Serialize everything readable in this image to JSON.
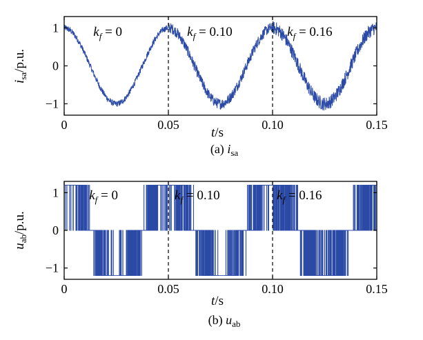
{
  "chart_data": [
    {
      "type": "line",
      "id": "isa",
      "caption_prefix": "(a) ",
      "caption_var": "i",
      "caption_sub": "sa",
      "ylabel_var": "i",
      "ylabel_sub": "sa",
      "ylabel_unit": "/p.u.",
      "xlabel_var": "t",
      "xlabel_unit": "/s",
      "xlim": [
        0,
        0.15
      ],
      "ylim": [
        -1.3,
        1.3
      ],
      "xticks": [
        0,
        0.05,
        0.1,
        0.15
      ],
      "xtick_labels": [
        "0",
        "0.05",
        "0.10",
        "0.15"
      ],
      "yticks": [
        -1,
        0,
        1
      ],
      "ytick_labels": [
        "−1",
        "0",
        "1"
      ],
      "dashed_x": [
        0.05,
        0.1
      ],
      "annotations": [
        {
          "prefix": "k",
          "sub": "f",
          "value": " = 0",
          "x": 0.014
        },
        {
          "prefix": "k",
          "sub": "f",
          "value": " = 0.10",
          "x": 0.059
        },
        {
          "prefix": "k",
          "sub": "f",
          "value": " = 0.16",
          "x": 0.107
        }
      ],
      "series": [
        {
          "color": "#2b4aa6",
          "signal": "sinusoid",
          "frequency_hz": 20,
          "amplitude": 1.0,
          "noise_amplitude_by_segment": [
            0.08,
            0.14,
            0.18
          ]
        }
      ]
    },
    {
      "type": "line",
      "id": "uab",
      "caption_prefix": "(b) ",
      "caption_var": "u",
      "caption_sub": "ab",
      "ylabel_var": "u",
      "ylabel_sub": "ab",
      "ylabel_unit": "/p.u.",
      "xlabel_var": "t",
      "xlabel_unit": "/s",
      "xlim": [
        0,
        0.15
      ],
      "ylim": [
        -1.3,
        1.3
      ],
      "xticks": [
        0,
        0.05,
        0.1,
        0.15
      ],
      "xtick_labels": [
        "0",
        "0.05",
        "0.10",
        "0.15"
      ],
      "yticks": [
        -1,
        0,
        1
      ],
      "ytick_labels": [
        "−1",
        "0",
        "1"
      ],
      "dashed_x": [
        0.05,
        0.1
      ],
      "annotations": [
        {
          "prefix": "k",
          "sub": "f",
          "value": " = 0",
          "x": 0.012
        },
        {
          "prefix": "k",
          "sub": "f",
          "value": " = 0.10",
          "x": 0.053
        },
        {
          "prefix": "k",
          "sub": "f",
          "value": " = 0.16",
          "x": 0.102
        }
      ],
      "series": [
        {
          "color": "#2b4aa6",
          "signal": "pwm",
          "levels": [
            -1.2,
            0,
            1.2
          ],
          "frequency_hz": 20
        }
      ]
    }
  ]
}
